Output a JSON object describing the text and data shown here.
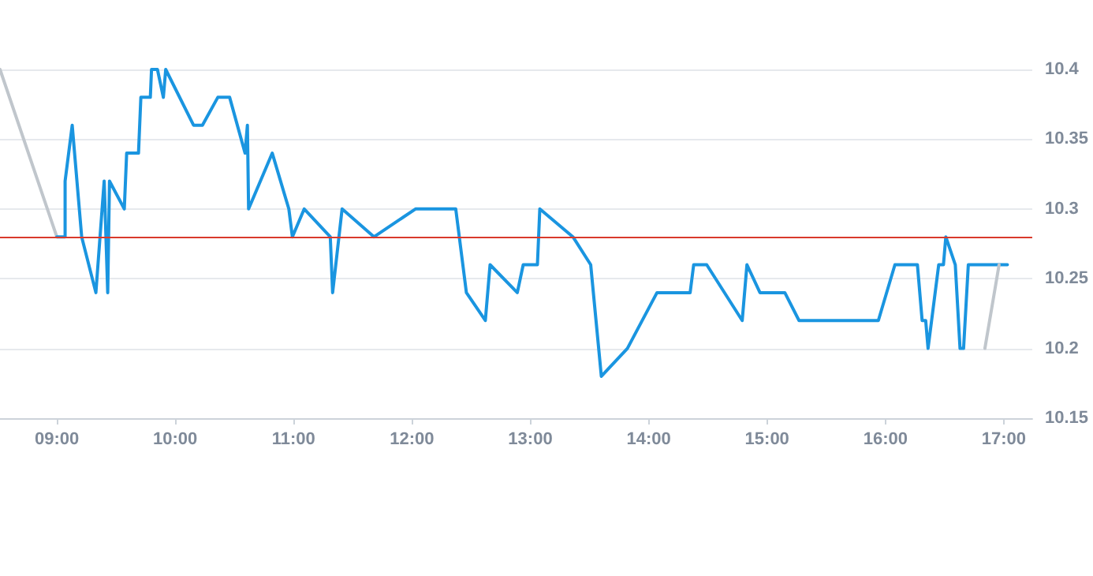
{
  "chart_data": {
    "type": "line",
    "xlim": [
      8.52,
      17.24
    ],
    "ylim": [
      10.15,
      10.4
    ],
    "xticks": [
      {
        "value": 9,
        "label": "09:00"
      },
      {
        "value": 10,
        "label": "10:00"
      },
      {
        "value": 11,
        "label": "11:00"
      },
      {
        "value": 12,
        "label": "12:00"
      },
      {
        "value": 13,
        "label": "13:00"
      },
      {
        "value": 14,
        "label": "14:00"
      },
      {
        "value": 15,
        "label": "15:00"
      },
      {
        "value": 16,
        "label": "16:00"
      },
      {
        "value": 17,
        "label": "17:00"
      }
    ],
    "yticks": [
      10.15,
      10.2,
      10.25,
      10.3,
      10.35,
      10.4
    ],
    "grid": "y",
    "marker": "none",
    "line_style": "solid",
    "ref_lines": [
      {
        "axis": "y",
        "value": 10.28,
        "color": "#d93a2b"
      }
    ],
    "series": [
      {
        "color": "#c0c6cc",
        "x": [
          8.52,
          9.0
        ],
        "values": [
          10.4,
          10.28
        ]
      },
      {
        "color": "#1a95e0",
        "x": [
          9.0,
          9.07,
          9.07,
          9.13,
          9.21,
          9.33,
          9.4,
          9.43,
          9.445,
          9.57,
          9.59,
          9.69,
          9.71,
          9.79,
          9.8,
          9.85,
          9.9,
          9.92,
          10.155,
          10.23,
          10.36,
          10.46,
          10.59,
          10.61,
          10.62,
          10.82,
          10.96,
          10.99,
          11.09,
          11.31,
          11.33,
          11.41,
          11.68,
          12.03,
          12.37,
          12.46,
          12.62,
          12.66,
          12.89,
          12.94,
          13.06,
          13.08,
          13.36,
          13.51,
          13.6,
          13.82,
          14.07,
          14.35,
          14.38,
          14.49,
          14.79,
          14.83,
          14.94,
          15.15,
          15.27,
          15.94,
          16.08,
          16.27,
          16.31,
          16.34,
          16.36,
          16.45,
          16.49,
          16.51,
          16.59,
          16.63,
          16.66,
          16.7,
          17.03
        ],
        "values": [
          10.28,
          10.28,
          10.32,
          10.36,
          10.28,
          10.24,
          10.32,
          10.24,
          10.32,
          10.3,
          10.34,
          10.34,
          10.38,
          10.38,
          10.4,
          10.4,
          10.38,
          10.4,
          10.36,
          10.36,
          10.38,
          10.38,
          10.34,
          10.36,
          10.3,
          10.34,
          10.3,
          10.28,
          10.3,
          10.28,
          10.24,
          10.3,
          10.28,
          10.3,
          10.3,
          10.24,
          10.22,
          10.26,
          10.24,
          10.26,
          10.26,
          10.3,
          10.28,
          10.26,
          10.18,
          10.2,
          10.24,
          10.24,
          10.26,
          10.26,
          10.22,
          10.26,
          10.24,
          10.24,
          10.22,
          10.22,
          10.26,
          10.26,
          10.22,
          10.22,
          10.2,
          10.26,
          10.26,
          10.28,
          10.26,
          10.2,
          10.2,
          10.26,
          10.26
        ]
      },
      {
        "color": "#c0c6cc",
        "x": [
          16.84,
          16.96
        ],
        "values": [
          10.2,
          10.26
        ]
      }
    ]
  }
}
